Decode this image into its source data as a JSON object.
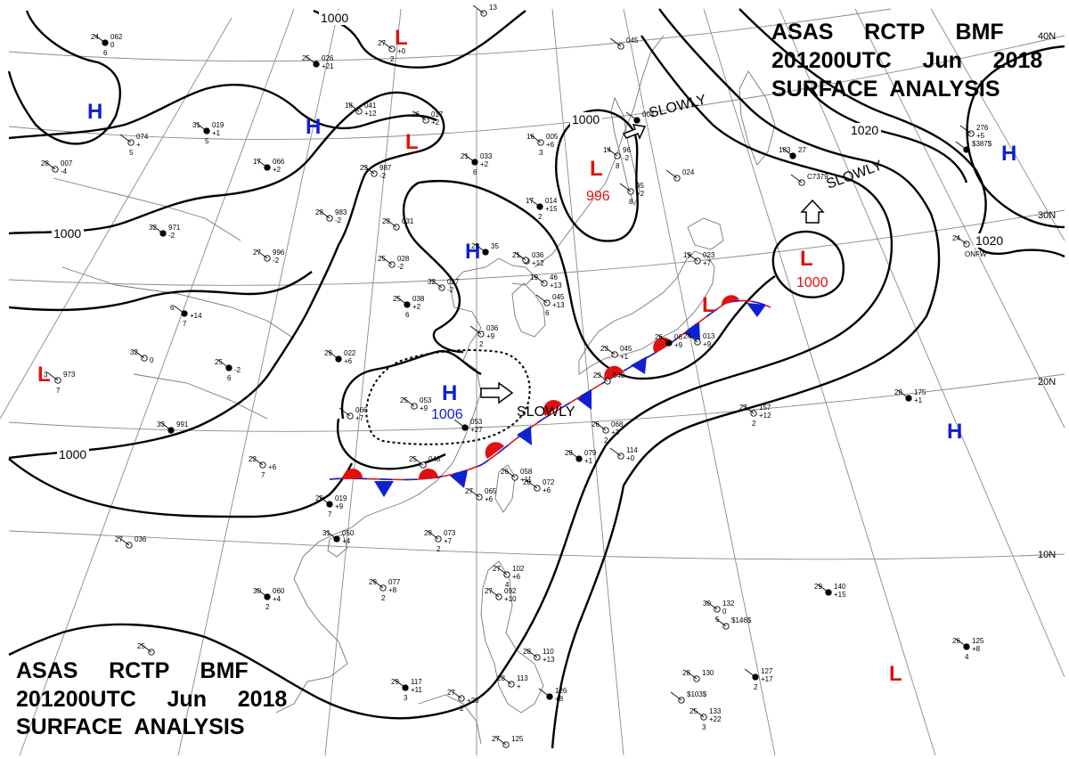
{
  "header": {
    "top_right": [
      "ASAS     RCTP     BMF",
      "201200UTC     Jun     2018",
      "SURFACE  ANALYSIS"
    ],
    "bottom_left": [
      "ASAS     RCTP     BMF",
      "201200UTC     Jun     2018",
      "SURFACE  ANALYSIS"
    ]
  },
  "colors": {
    "high": "#1020d0",
    "low": "#e01010",
    "warm_front": "#e01010",
    "cold_front": "#1020d0",
    "isobar": "#000000",
    "grid": "#909090",
    "coast": "#7a7a7a"
  },
  "latitude_labels": [
    "40N",
    "30N",
    "20N",
    "10N"
  ],
  "isobar_labels": [
    "1000",
    "1000",
    "1000",
    "1000",
    "1000",
    "1020",
    "1020"
  ],
  "pressure_centers": [
    {
      "type": "H",
      "value": ""
    },
    {
      "type": "H",
      "value": ""
    },
    {
      "type": "H",
      "value": ""
    },
    {
      "type": "H",
      "value": "1006"
    },
    {
      "type": "H",
      "value": ""
    },
    {
      "type": "H",
      "value": ""
    },
    {
      "type": "L",
      "value": ""
    },
    {
      "type": "L",
      "value": ""
    },
    {
      "type": "L",
      "value": "996"
    },
    {
      "type": "L",
      "value": "1000"
    },
    {
      "type": "L",
      "value": ""
    },
    {
      "type": "L",
      "value": ""
    },
    {
      "type": "L",
      "value": ""
    }
  ],
  "movement_labels": [
    "SLOWLY",
    "SLOWLY",
    "SLOWLY"
  ],
  "station_plots": [
    {
      "t": "24",
      "p": "062",
      "s": "0",
      "w": "6"
    },
    {
      "t": "",
      "p": "13",
      "s": "",
      "w": ""
    },
    {
      "t": "27",
      "p": "",
      "s": "+0",
      "w": "2"
    },
    {
      "t": "25",
      "p": "026",
      "s": "+21",
      "w": ""
    },
    {
      "t": "18",
      "p": "041",
      "s": "+12",
      "w": ""
    },
    {
      "t": "26",
      "p": "017",
      "s": "+2",
      "w": ""
    },
    {
      "t": "31",
      "p": "019",
      "s": "+1",
      "w": "5"
    },
    {
      "t": "",
      "p": "074",
      "s": "+",
      "w": "5"
    },
    {
      "t": "28",
      "p": "007",
      "s": "-4",
      "w": ""
    },
    {
      "t": "17",
      "p": "066",
      "s": "+2",
      "w": ""
    },
    {
      "t": "23",
      "p": "987",
      "s": "-2",
      "w": ""
    },
    {
      "t": "16",
      "p": "005",
      "s": "+6",
      "w": "3"
    },
    {
      "t": "",
      "p": "004",
      "s": "",
      "w": ""
    },
    {
      "t": "",
      "p": "045",
      "s": "",
      "w": ""
    },
    {
      "t": "14",
      "p": "96",
      "s": "-2",
      "w": "8"
    },
    {
      "t": "21",
      "p": "033",
      "s": "+2",
      "w": "6"
    },
    {
      "t": "28",
      "p": "983",
      "s": "-2",
      "w": ""
    },
    {
      "t": "28",
      "p": "031",
      "s": "",
      "w": ""
    },
    {
      "t": "17",
      "p": "014",
      "s": "+15",
      "w": "2"
    },
    {
      "t": "",
      "p": "95",
      "s": "+2",
      "w": "8"
    },
    {
      "t": "",
      "p": "024",
      "s": "",
      "w": ""
    },
    {
      "t": "32",
      "p": "971",
      "s": "-2",
      "w": ""
    },
    {
      "t": "27",
      "p": "996",
      "s": "-2",
      "w": ""
    },
    {
      "t": "25",
      "p": "028",
      "s": "-2",
      "w": ""
    },
    {
      "t": "23",
      "p": "35",
      "s": "",
      "w": ""
    },
    {
      "t": "21",
      "p": "036",
      "s": "+12",
      "w": ""
    },
    {
      "t": "19",
      "p": "023",
      "s": "+7",
      "w": ""
    },
    {
      "t": "183",
      "p": "27",
      "s": "",
      "w": ""
    },
    {
      "t": "",
      "p": "C7379",
      "s": "",
      "w": ""
    },
    {
      "t": "",
      "p": "276",
      "s": "+5",
      "w": ""
    },
    {
      "t": "",
      "p": "$387$",
      "s": "",
      "w": ""
    },
    {
      "t": "24",
      "p": "",
      "s": "",
      "w": "ONFW"
    },
    {
      "t": "32",
      "p": "017",
      "s": "-2",
      "w": ""
    },
    {
      "t": "25",
      "p": "038",
      "s": "+2",
      "w": "6"
    },
    {
      "t": "19",
      "p": "46",
      "s": "+13",
      "w": ""
    },
    {
      "t": "",
      "p": "045",
      "s": "+13",
      "w": "6"
    },
    {
      "t": "6",
      "p": "",
      "s": "+14",
      "w": "7"
    },
    {
      "t": "",
      "p": "036",
      "s": "+9",
      "w": "2"
    },
    {
      "t": "",
      "p": "",
      "s": "",
      "w": ""
    },
    {
      "t": "25",
      "p": "",
      "s": "-2",
      "w": "6"
    },
    {
      "t": "3",
      "p": "973",
      "s": "",
      "w": "7"
    },
    {
      "t": "32",
      "p": "",
      "s": "0",
      "w": ""
    },
    {
      "t": "29",
      "p": "022",
      "s": "+6",
      "w": ""
    },
    {
      "t": "23",
      "p": "045",
      "s": "+1",
      "w": ""
    },
    {
      "t": "23",
      "p": "042",
      "s": "",
      "w": ""
    },
    {
      "t": "26",
      "p": "06",
      "s": "+9",
      "w": ""
    },
    {
      "t": "24",
      "p": "013",
      "s": "+9",
      "w": ""
    },
    {
      "t": "25",
      "p": "053",
      "s": "+9",
      "w": ""
    },
    {
      "t": "",
      "p": "053",
      "s": "+27",
      "w": ""
    },
    {
      "t": "26",
      "p": "068",
      "s": "+3",
      "w": "2"
    },
    {
      "t": "",
      "p": "066",
      "s": "+7",
      "w": ""
    },
    {
      "t": "33",
      "p": "991",
      "s": "",
      "w": ""
    },
    {
      "t": "22",
      "p": "",
      "s": "+6",
      "w": "7"
    },
    {
      "t": "25",
      "p": "048",
      "s": "",
      "w": ""
    },
    {
      "t": "28",
      "p": "079",
      "s": "+1",
      "w": ""
    },
    {
      "t": "",
      "p": "114",
      "s": "+0",
      "w": ""
    },
    {
      "t": "27",
      "p": "157",
      "s": "+12",
      "w": "2"
    },
    {
      "t": "28",
      "p": "175",
      "s": "+1",
      "w": ""
    },
    {
      "t": "26",
      "p": "058",
      "s": "+11",
      "w": ""
    },
    {
      "t": "28",
      "p": "072",
      "s": "+6",
      "w": ""
    },
    {
      "t": "29",
      "p": "019",
      "s": "+9",
      "w": "7"
    },
    {
      "t": "27",
      "p": "065",
      "s": "+6",
      "w": ""
    },
    {
      "t": "27",
      "p": "036",
      "s": "",
      "w": ""
    },
    {
      "t": "31",
      "p": "050",
      "s": "+4",
      "w": ""
    },
    {
      "t": "28",
      "p": "073",
      "s": "+7",
      "w": "2"
    },
    {
      "t": "27",
      "p": "102",
      "s": "+6",
      "w": "4"
    },
    {
      "t": "30",
      "p": "060",
      "s": "+4",
      "w": "2"
    },
    {
      "t": "29",
      "p": "077",
      "s": "+8",
      "w": "2"
    },
    {
      "t": "27",
      "p": "092",
      "s": "+10",
      "w": ""
    },
    {
      "t": "29",
      "p": "140",
      "s": "+15",
      "w": ""
    },
    {
      "t": "30",
      "p": "132",
      "s": "0",
      "w": "5"
    },
    {
      "t": "",
      "p": "$146$",
      "s": "",
      "w": ""
    },
    {
      "t": "26",
      "p": "125",
      "s": "+8",
      "w": "4"
    },
    {
      "t": "25",
      "p": "",
      "s": "",
      "w": ""
    },
    {
      "t": "28",
      "p": "110",
      "s": "+13",
      "w": ""
    },
    {
      "t": "29",
      "p": "117",
      "s": "+11",
      "w": "3"
    },
    {
      "t": "28",
      "p": "113",
      "s": "+",
      "w": ""
    },
    {
      "t": "27",
      "p": "",
      "s": "+23",
      "w": "2"
    },
    {
      "t": "",
      "p": "126",
      "s": "+8",
      "w": ""
    },
    {
      "t": "28",
      "p": "130",
      "s": "",
      "w": ""
    },
    {
      "t": "",
      "p": "$103$",
      "s": "",
      "w": ""
    },
    {
      "t": "",
      "p": "127",
      "s": "+17",
      "w": "2"
    },
    {
      "t": "25",
      "p": "133",
      "s": "+22",
      "w": "3"
    },
    {
      "t": "27",
      "p": "125",
      "s": "",
      "w": ""
    }
  ]
}
